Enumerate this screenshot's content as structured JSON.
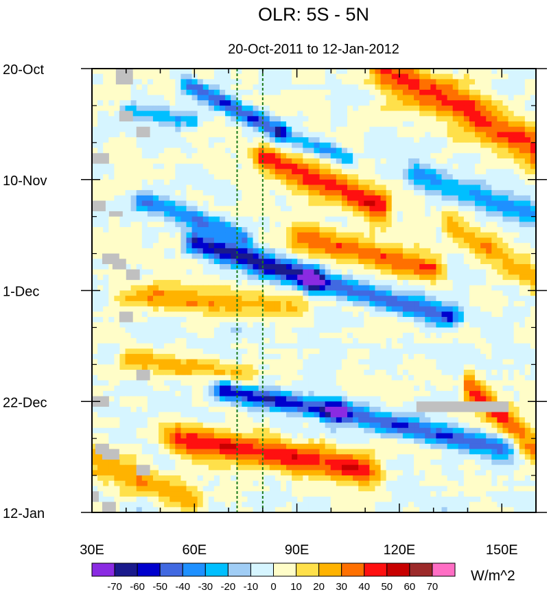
{
  "chart_data": {
    "type": "heatmap",
    "title": "OLR: 5S - 5N",
    "subtitle": "20-Oct-2011 to 12-Jan-2012",
    "x_range": [
      30,
      160
    ],
    "y_range_days": [
      0,
      84
    ],
    "x_ticks": [
      {
        "value": 30,
        "label": "30E"
      },
      {
        "value": 60,
        "label": "60E"
      },
      {
        "value": 90,
        "label": "90E"
      },
      {
        "value": 120,
        "label": "120E"
      },
      {
        "value": 150,
        "label": "150E"
      }
    ],
    "y_ticks": [
      {
        "day": 0,
        "label": "20-Oct"
      },
      {
        "day": 21,
        "label": "10-Nov"
      },
      {
        "day": 42,
        "label": "1-Dec"
      },
      {
        "day": 63,
        "label": "22-Dec"
      },
      {
        "day": 84,
        "label": "12-Jan"
      }
    ],
    "reference_lines_lon": [
      72.5,
      80
    ],
    "colorbar": {
      "units": "W/m^2",
      "levels": [
        -70,
        -60,
        -50,
        -40,
        -30,
        -20,
        -10,
        0,
        10,
        20,
        30,
        40,
        50,
        60,
        70
      ],
      "labels": [
        "-70",
        "-60",
        "-50",
        "-40",
        "-30",
        "-20",
        "-10",
        "0",
        "10",
        "20",
        "30",
        "40",
        "50",
        "60",
        "70"
      ],
      "colors": [
        "#8a2be2",
        "#1a1a8c",
        "#0000cd",
        "#4169e1",
        "#1e90ff",
        "#00bfff",
        "#a0cdf5",
        "#d6f5ff",
        "#fffdc8",
        "#ffe04a",
        "#ffb300",
        "#ff7000",
        "#ff1010",
        "#c80000",
        "#9c2a2a",
        "#ff6ec4"
      ]
    },
    "missing_color": "#c0c0c0",
    "anomaly_features": [
      {
        "kind": "negative",
        "lon_start": 58,
        "day_start": 3,
        "lon_end": 85,
        "day_end": 12,
        "half_days": 1.8,
        "amp": -48
      },
      {
        "kind": "negative",
        "lon_start": 85,
        "day_start": 12,
        "lon_end": 105,
        "day_end": 17,
        "half_days": 1.5,
        "amp": -32
      },
      {
        "kind": "negative",
        "lon_start": 45,
        "day_start": 25,
        "lon_end": 75,
        "day_end": 32,
        "half_days": 1.8,
        "amp": -40
      },
      {
        "kind": "negative",
        "lon_start": 60,
        "day_start": 33,
        "lon_end": 95,
        "day_end": 40,
        "half_days": 2.2,
        "amp": -64
      },
      {
        "kind": "negative",
        "lon_start": 95,
        "day_start": 40,
        "lon_end": 135,
        "day_end": 47,
        "half_days": 2.0,
        "amp": -50
      },
      {
        "kind": "negative",
        "lon_start": 68,
        "day_start": 61,
        "lon_end": 102,
        "day_end": 65,
        "half_days": 1.8,
        "amp": -58
      },
      {
        "kind": "negative",
        "lon_start": 102,
        "day_start": 65,
        "lon_end": 150,
        "day_end": 72,
        "half_days": 2.0,
        "amp": -48
      },
      {
        "kind": "negative",
        "lon_start": 125,
        "day_start": 20,
        "lon_end": 160,
        "day_end": 28,
        "half_days": 2.5,
        "amp": -30
      },
      {
        "kind": "negative",
        "lon_start": 40,
        "day_start": 8,
        "lon_end": 60,
        "day_end": 10,
        "half_days": 1.5,
        "amp": -28
      },
      {
        "kind": "positive",
        "lon_start": 115,
        "day_start": 0,
        "lon_end": 160,
        "day_end": 15,
        "half_days": 4.5,
        "amp": 42
      },
      {
        "kind": "positive",
        "lon_start": 80,
        "day_start": 17,
        "lon_end": 115,
        "day_end": 26,
        "half_days": 3.0,
        "amp": 45
      },
      {
        "kind": "positive",
        "lon_start": 90,
        "day_start": 32,
        "lon_end": 130,
        "day_end": 38,
        "half_days": 2.5,
        "amp": 38
      },
      {
        "kind": "positive",
        "lon_start": 40,
        "day_start": 43,
        "lon_end": 90,
        "day_end": 45,
        "half_days": 2.5,
        "amp": 25
      },
      {
        "kind": "positive",
        "lon_start": 40,
        "day_start": 55,
        "lon_end": 75,
        "day_end": 58,
        "half_days": 2.0,
        "amp": 22
      },
      {
        "kind": "positive",
        "lon_start": 55,
        "day_start": 70,
        "lon_end": 110,
        "day_end": 76,
        "half_days": 3.0,
        "amp": 45
      },
      {
        "kind": "positive",
        "lon_start": 30,
        "day_start": 74,
        "lon_end": 60,
        "day_end": 82,
        "half_days": 3.0,
        "amp": 28
      },
      {
        "kind": "positive",
        "lon_start": 140,
        "day_start": 60,
        "lon_end": 160,
        "day_end": 72,
        "half_days": 3.0,
        "amp": 40
      },
      {
        "kind": "positive",
        "lon_start": 135,
        "day_start": 30,
        "lon_end": 160,
        "day_end": 40,
        "half_days": 3.0,
        "amp": 25
      }
    ],
    "missing_regions": [
      {
        "lon": [
          37,
          42
        ],
        "day": [
          0,
          3
        ]
      },
      {
        "lon": [
          38,
          42
        ],
        "day": [
          8,
          10
        ]
      },
      {
        "lon": [
          43,
          47
        ],
        "day": [
          11,
          13
        ]
      },
      {
        "lon": [
          30,
          35
        ],
        "day": [
          16,
          18
        ]
      },
      {
        "lon": [
          30,
          34
        ],
        "day": [
          25,
          27
        ]
      },
      {
        "lon": [
          35,
          39
        ],
        "day": [
          27,
          28
        ]
      },
      {
        "lon": [
          33,
          38
        ],
        "day": [
          35,
          37
        ]
      },
      {
        "lon": [
          36,
          40
        ],
        "day": [
          36,
          38
        ]
      },
      {
        "lon": [
          40,
          44
        ],
        "day": [
          38,
          40
        ]
      },
      {
        "lon": [
          38,
          42
        ],
        "day": [
          46,
          48
        ]
      },
      {
        "lon": [
          43,
          47
        ],
        "day": [
          57,
          59
        ]
      },
      {
        "lon": [
          30,
          35
        ],
        "day": [
          62,
          64
        ]
      },
      {
        "lon": [
          125,
          152
        ],
        "day": [
          63,
          65
        ]
      },
      {
        "lon": [
          31,
          35
        ],
        "day": [
          71,
          73
        ]
      },
      {
        "lon": [
          33,
          38
        ],
        "day": [
          72,
          74
        ]
      },
      {
        "lon": [
          43,
          47
        ],
        "day": [
          75,
          77
        ]
      },
      {
        "lon": [
          30,
          32
        ],
        "day": [
          80,
          82
        ]
      },
      {
        "lon": [
          33,
          37
        ],
        "day": [
          82,
          84
        ]
      }
    ]
  }
}
